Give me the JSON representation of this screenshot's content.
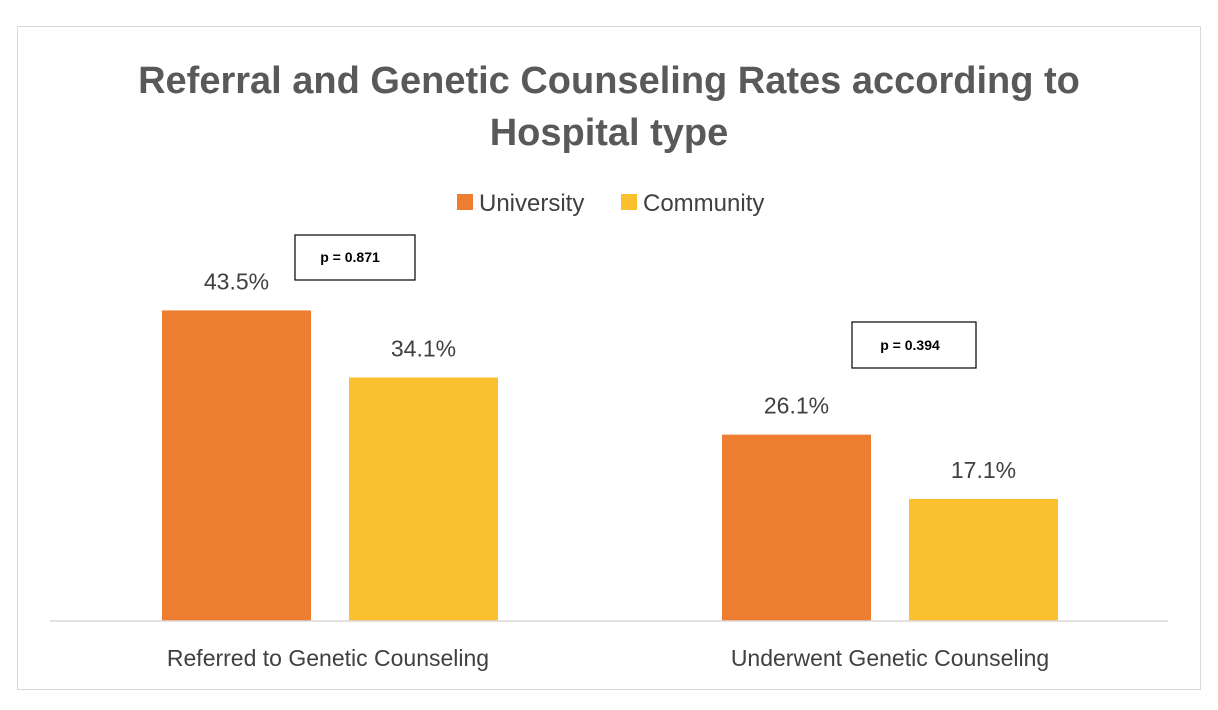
{
  "chart_data": {
    "type": "bar",
    "title": "Referral and Genetic Counseling Rates according to Hospital type",
    "title_lines": [
      "Referral and Genetic Counseling Rates according to",
      "Hospital type"
    ],
    "categories": [
      "Referred to Genetic Counseling",
      "Underwent Genetic Counseling"
    ],
    "series": [
      {
        "name": "University",
        "values": [
          43.5,
          26.1
        ],
        "labels": [
          "43.5%",
          "26.1%"
        ],
        "color": "#ED7D31"
      },
      {
        "name": "Community",
        "values": [
          34.1,
          17.1
        ],
        "labels": [
          "34.1%",
          "17.1%"
        ],
        "color": "#FBC02D"
      }
    ],
    "annotations": [
      "p = 0.871",
      "p = 0.394"
    ],
    "ylim": [
      0,
      50
    ],
    "grid": false,
    "legend_position": "top-center",
    "xlabel": "",
    "ylabel": ""
  }
}
